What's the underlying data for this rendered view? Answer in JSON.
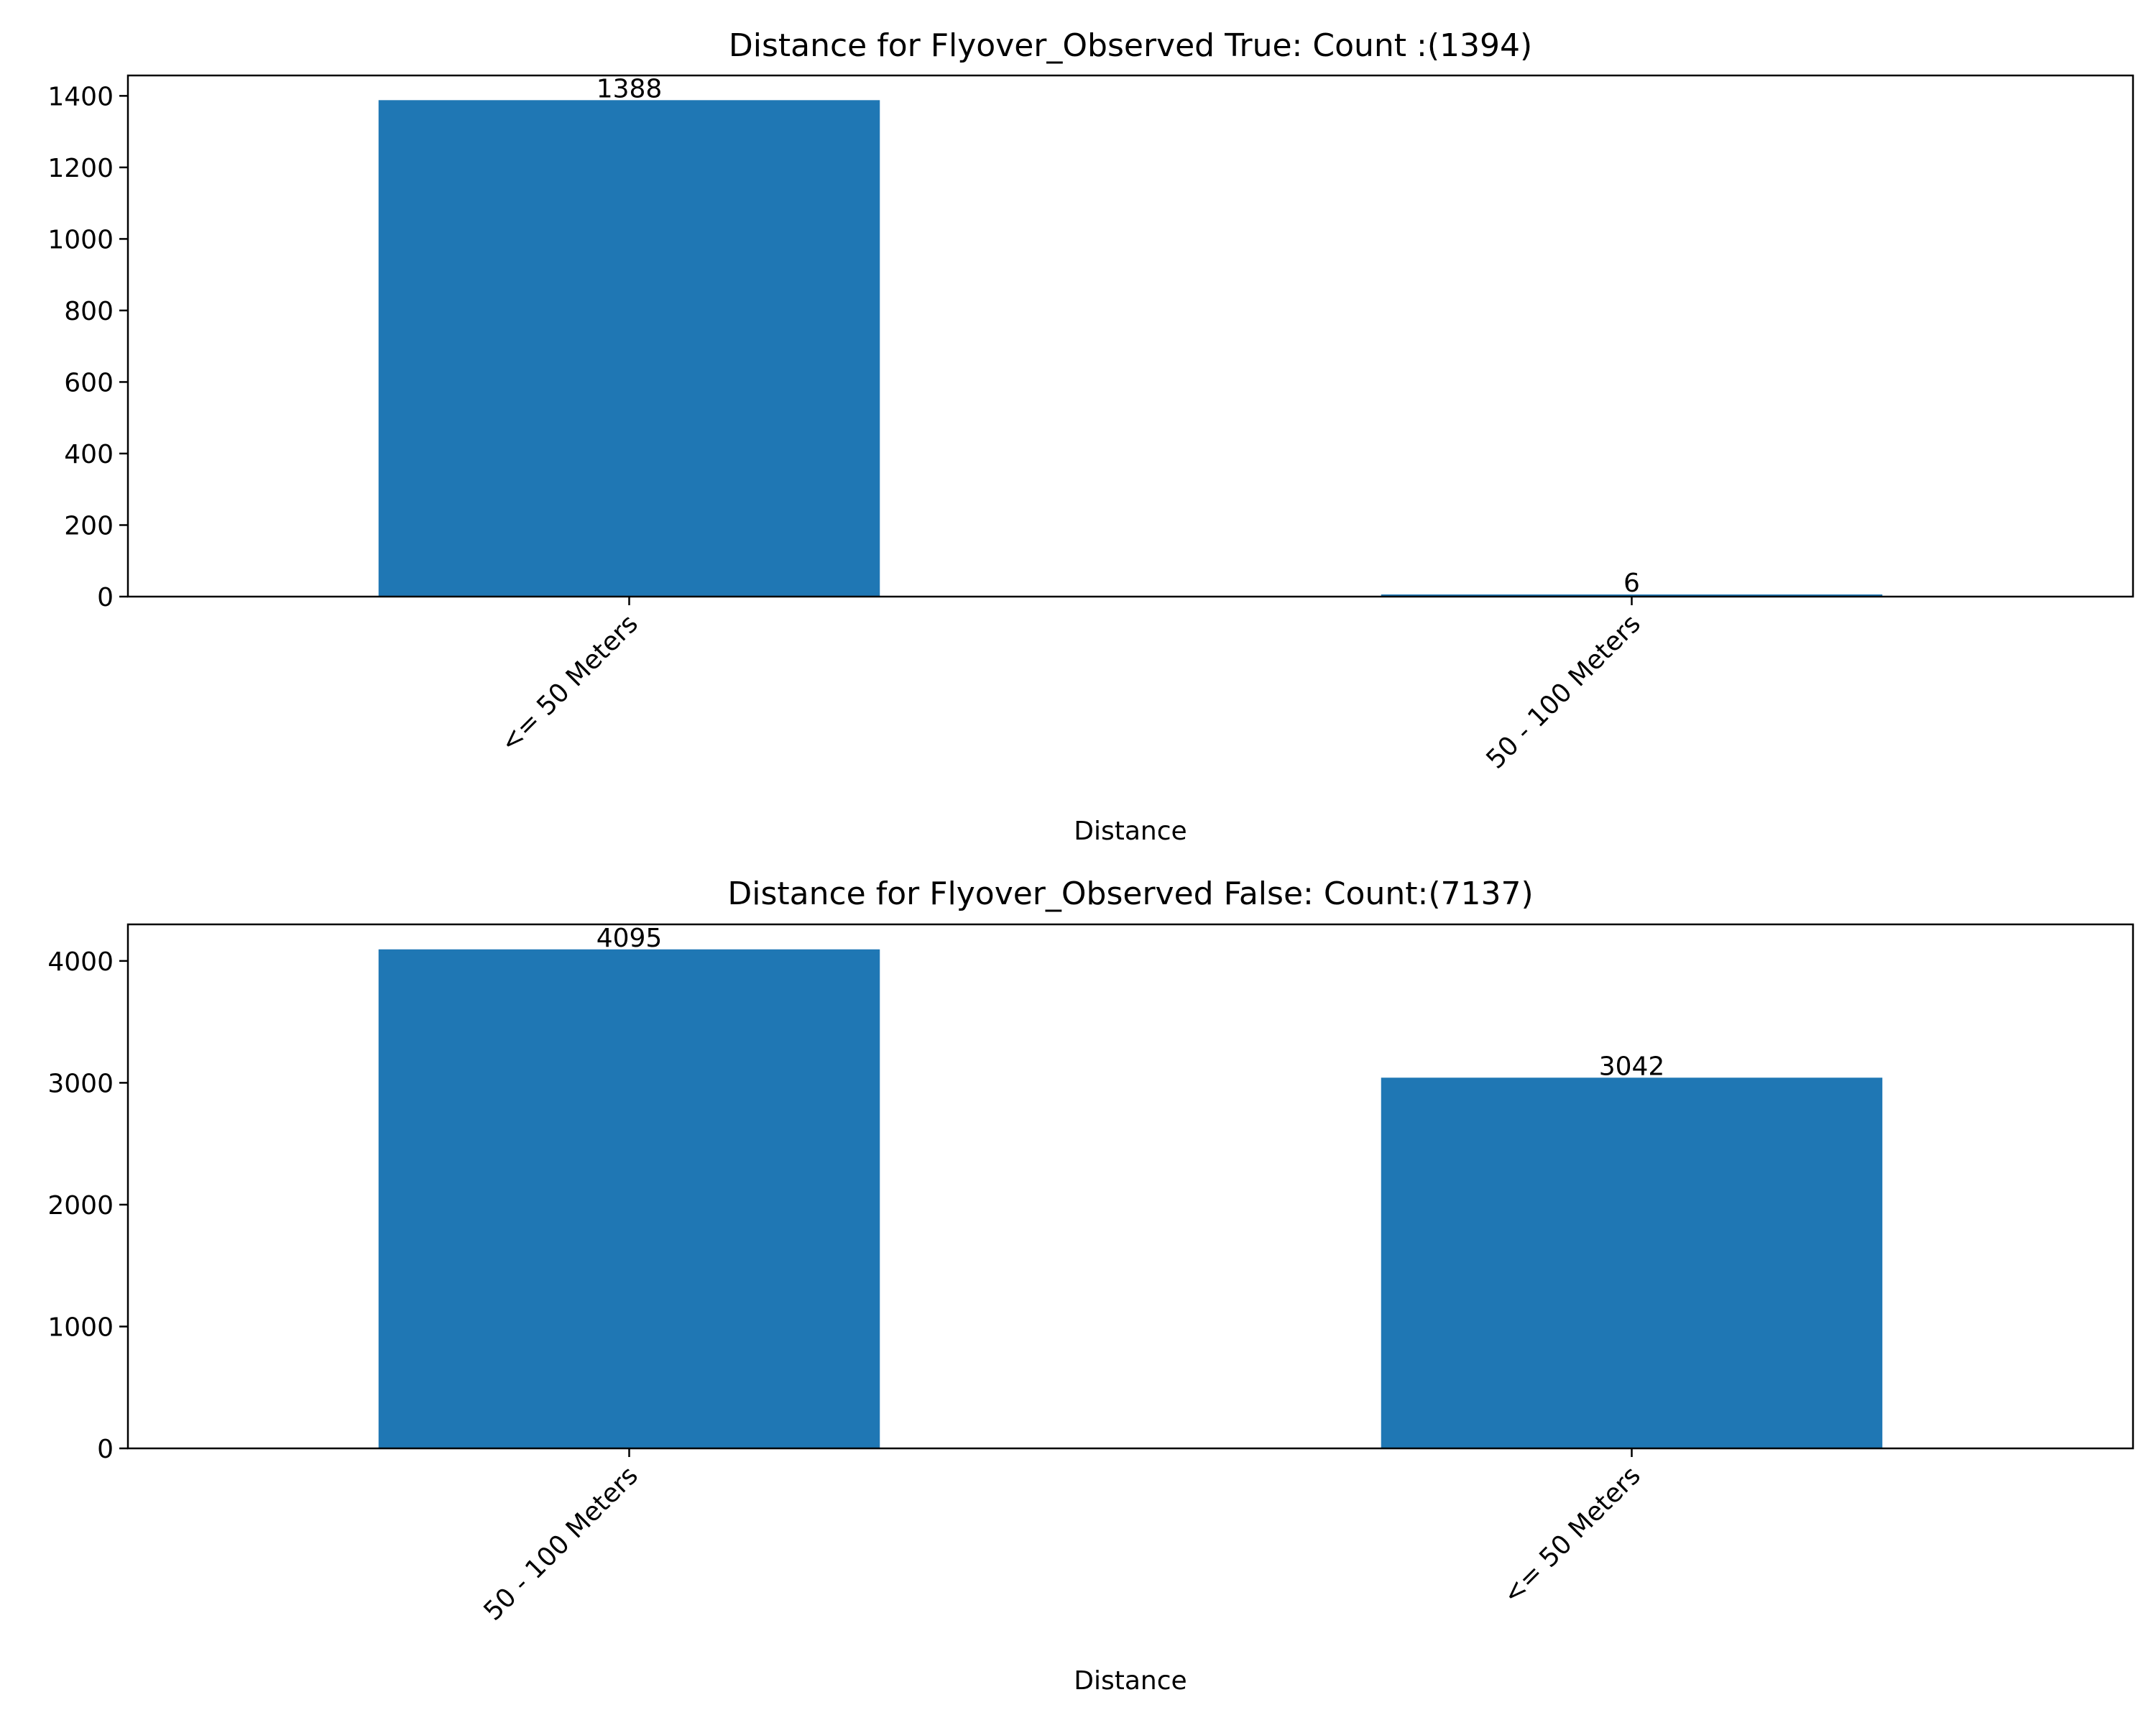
{
  "chart_data": [
    {
      "type": "bar",
      "title": "Distance for Flyover_Observed True: Count :(1394)",
      "xlabel": "Distance",
      "ylabel": "",
      "categories": [
        "<= 50 Meters",
        "50 - 100 Meters"
      ],
      "values": [
        1388,
        6
      ],
      "value_labels": [
        "1388",
        "6"
      ],
      "yticks": [
        0,
        200,
        400,
        600,
        800,
        1000,
        1200,
        1400
      ],
      "ylim": [
        0,
        1457
      ],
      "bar_color": "#1f77b4",
      "grid": false,
      "legend": "none"
    },
    {
      "type": "bar",
      "title": "Distance for Flyover_Observed False: Count:(7137)",
      "xlabel": "Distance",
      "ylabel": "",
      "categories": [
        "50 - 100 Meters",
        "<= 50 Meters"
      ],
      "values": [
        4095,
        3042
      ],
      "value_labels": [
        "4095",
        "3042"
      ],
      "yticks": [
        0,
        1000,
        2000,
        3000,
        4000
      ],
      "ylim": [
        0,
        4300
      ],
      "bar_color": "#1f77b4",
      "grid": false,
      "legend": "none"
    }
  ]
}
